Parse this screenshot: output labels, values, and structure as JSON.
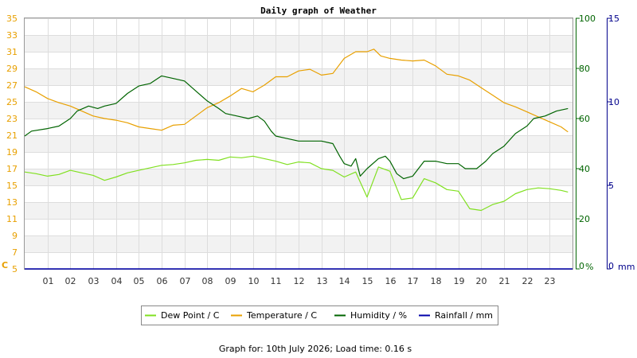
{
  "chart_data": {
    "type": "line",
    "title": "Daily graph of Weather",
    "footer": "Graph for: 10th July 2026; Load time: 0.16 s",
    "x_hours": [
      "01",
      "02",
      "03",
      "04",
      "05",
      "06",
      "07",
      "08",
      "09",
      "10",
      "11",
      "12",
      "13",
      "14",
      "15",
      "16",
      "17",
      "18",
      "19",
      "20",
      "21",
      "22",
      "23"
    ],
    "xlim": [
      0,
      24
    ],
    "axes": {
      "temperature": {
        "unit": "C",
        "ticks": [
          5,
          7,
          9,
          11,
          13,
          15,
          17,
          19,
          21,
          23,
          25,
          27,
          29,
          31,
          33,
          35
        ],
        "lim": [
          5,
          35
        ],
        "color": "#e8a000"
      },
      "humidity": {
        "unit": "%",
        "ticks": [
          0,
          20,
          40,
          60,
          80,
          100
        ],
        "lim": [
          0,
          100
        ],
        "color": "#006400"
      },
      "rainfall": {
        "unit": "mm",
        "ticks": [
          0,
          5,
          10,
          15
        ],
        "lim": [
          0,
          15
        ],
        "color": "#00008b"
      }
    },
    "grid": true,
    "legend_position": "bottom-center",
    "series": [
      {
        "name": "Dew Point / C",
        "axis": "temperature",
        "color": "#80e020",
        "points": [
          [
            0,
            16.6
          ],
          [
            0.5,
            16.4
          ],
          [
            1,
            16.1
          ],
          [
            1.5,
            16.3
          ],
          [
            2,
            16.8
          ],
          [
            2.5,
            16.5
          ],
          [
            3,
            16.2
          ],
          [
            3.5,
            15.6
          ],
          [
            4,
            16.0
          ],
          [
            4.5,
            16.5
          ],
          [
            5,
            16.8
          ],
          [
            5.5,
            17.1
          ],
          [
            6,
            17.4
          ],
          [
            6.5,
            17.5
          ],
          [
            7,
            17.7
          ],
          [
            7.5,
            18.0
          ],
          [
            8,
            18.1
          ],
          [
            8.5,
            18.0
          ],
          [
            9,
            18.4
          ],
          [
            9.5,
            18.3
          ],
          [
            10,
            18.5
          ],
          [
            10.5,
            18.2
          ],
          [
            11,
            17.9
          ],
          [
            11.5,
            17.5
          ],
          [
            12,
            17.8
          ],
          [
            12.5,
            17.7
          ],
          [
            13,
            17.0
          ],
          [
            13.5,
            16.8
          ],
          [
            14,
            16.0
          ],
          [
            14.5,
            16.6
          ],
          [
            15,
            13.6
          ],
          [
            15.5,
            17.2
          ],
          [
            16,
            16.7
          ],
          [
            16.5,
            13.3
          ],
          [
            17,
            13.5
          ],
          [
            17.5,
            15.8
          ],
          [
            18,
            15.3
          ],
          [
            18.5,
            14.5
          ],
          [
            19,
            14.3
          ],
          [
            19.5,
            12.2
          ],
          [
            20,
            12.0
          ],
          [
            20.5,
            12.7
          ],
          [
            21,
            13.1
          ],
          [
            21.5,
            14.0
          ],
          [
            22,
            14.5
          ],
          [
            22.5,
            14.7
          ],
          [
            23,
            14.6
          ],
          [
            23.5,
            14.4
          ],
          [
            23.8,
            14.2
          ]
        ]
      },
      {
        "name": "Temperature / C",
        "axis": "temperature",
        "color": "#e8a000",
        "points": [
          [
            0,
            26.8
          ],
          [
            0.5,
            26.2
          ],
          [
            1,
            25.4
          ],
          [
            1.5,
            24.9
          ],
          [
            2,
            24.5
          ],
          [
            2.5,
            23.9
          ],
          [
            3,
            23.3
          ],
          [
            3.5,
            23.0
          ],
          [
            4,
            22.8
          ],
          [
            4.5,
            22.5
          ],
          [
            5,
            22.0
          ],
          [
            5.5,
            21.8
          ],
          [
            6,
            21.6
          ],
          [
            6.5,
            22.2
          ],
          [
            7,
            22.3
          ],
          [
            7.5,
            23.3
          ],
          [
            8,
            24.3
          ],
          [
            8.5,
            24.9
          ],
          [
            9,
            25.7
          ],
          [
            9.5,
            26.6
          ],
          [
            10,
            26.2
          ],
          [
            10.5,
            27.0
          ],
          [
            11,
            28.0
          ],
          [
            11.5,
            28.0
          ],
          [
            12,
            28.7
          ],
          [
            12.5,
            28.9
          ],
          [
            13,
            28.2
          ],
          [
            13.5,
            28.4
          ],
          [
            14,
            30.2
          ],
          [
            14.5,
            31.0
          ],
          [
            15,
            31.0
          ],
          [
            15.3,
            31.3
          ],
          [
            15.6,
            30.5
          ],
          [
            16,
            30.2
          ],
          [
            16.5,
            30.0
          ],
          [
            17,
            29.9
          ],
          [
            17.5,
            30.0
          ],
          [
            18,
            29.3
          ],
          [
            18.5,
            28.3
          ],
          [
            19,
            28.1
          ],
          [
            19.5,
            27.6
          ],
          [
            20,
            26.7
          ],
          [
            20.5,
            25.8
          ],
          [
            21,
            24.9
          ],
          [
            21.5,
            24.4
          ],
          [
            22,
            23.8
          ],
          [
            22.5,
            23.2
          ],
          [
            23,
            22.6
          ],
          [
            23.5,
            22.0
          ],
          [
            23.8,
            21.4
          ]
        ]
      },
      {
        "name": "Humidity / %",
        "axis": "humidity",
        "color": "#006400",
        "points": [
          [
            0,
            53
          ],
          [
            0.3,
            55
          ],
          [
            1,
            56
          ],
          [
            1.5,
            57
          ],
          [
            2,
            60
          ],
          [
            2.3,
            63
          ],
          [
            2.8,
            65
          ],
          [
            3.2,
            64
          ],
          [
            3.5,
            65
          ],
          [
            4,
            66
          ],
          [
            4.5,
            70
          ],
          [
            5,
            73
          ],
          [
            5.5,
            74
          ],
          [
            6,
            77
          ],
          [
            6.5,
            76
          ],
          [
            7,
            75
          ],
          [
            7.5,
            71
          ],
          [
            8,
            67
          ],
          [
            8.5,
            64
          ],
          [
            8.8,
            62
          ],
          [
            9.3,
            61
          ],
          [
            9.8,
            60
          ],
          [
            10.2,
            61
          ],
          [
            10.5,
            59
          ],
          [
            10.8,
            55
          ],
          [
            11,
            53
          ],
          [
            11.5,
            52
          ],
          [
            12,
            51
          ],
          [
            12.5,
            51
          ],
          [
            13,
            51
          ],
          [
            13.5,
            50
          ],
          [
            13.8,
            45
          ],
          [
            14,
            42
          ],
          [
            14.3,
            41
          ],
          [
            14.5,
            44
          ],
          [
            14.7,
            37
          ],
          [
            15,
            40
          ],
          [
            15.5,
            44
          ],
          [
            15.8,
            45
          ],
          [
            16,
            43
          ],
          [
            16.3,
            38
          ],
          [
            16.6,
            36
          ],
          [
            17,
            37
          ],
          [
            17.5,
            43
          ],
          [
            18,
            43
          ],
          [
            18.5,
            42
          ],
          [
            19,
            42
          ],
          [
            19.3,
            40
          ],
          [
            19.8,
            40
          ],
          [
            20.2,
            43
          ],
          [
            20.5,
            46
          ],
          [
            21,
            49
          ],
          [
            21.5,
            54
          ],
          [
            22,
            57
          ],
          [
            22.3,
            60
          ],
          [
            22.8,
            61
          ],
          [
            23.3,
            63
          ],
          [
            23.8,
            64
          ]
        ]
      },
      {
        "name": "Rainfall / mm",
        "axis": "rainfall",
        "color": "#0000aa",
        "points": [
          [
            0,
            0
          ],
          [
            24,
            0
          ]
        ]
      }
    ]
  }
}
